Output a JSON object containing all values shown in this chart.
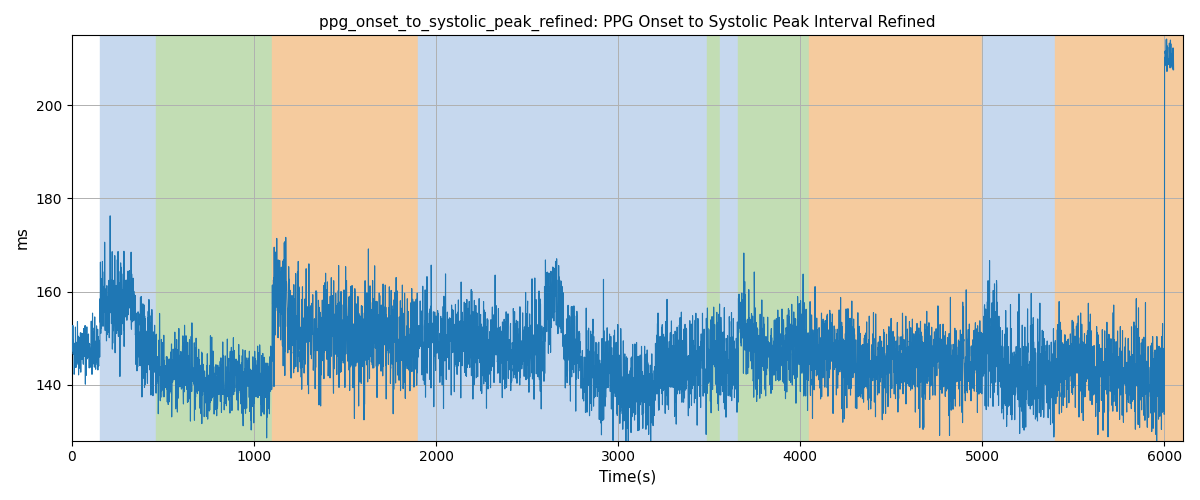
{
  "title": "ppg_onset_to_systolic_peak_refined: PPG Onset to Systolic Peak Interval Refined",
  "xlabel": "Time(s)",
  "ylabel": "ms",
  "xlim": [
    0,
    6100
  ],
  "ylim": [
    128,
    215
  ],
  "yticks": [
    140,
    160,
    180,
    200
  ],
  "xticks": [
    0,
    1000,
    2000,
    3000,
    4000,
    5000,
    6000
  ],
  "line_color": "#1f77b4",
  "line_width": 0.8,
  "grid_color": "#b0b0b0",
  "bands": [
    {
      "xmin": 0,
      "xmax": 155,
      "color": "#ffffff"
    },
    {
      "xmin": 155,
      "xmax": 460,
      "color": "#c6d8ee"
    },
    {
      "xmin": 460,
      "xmax": 1100,
      "color": "#c2ddb4"
    },
    {
      "xmin": 1100,
      "xmax": 1900,
      "color": "#f5cb9e"
    },
    {
      "xmin": 1900,
      "xmax": 3490,
      "color": "#c6d8ee"
    },
    {
      "xmin": 3490,
      "xmax": 3560,
      "color": "#c2ddb4"
    },
    {
      "xmin": 3560,
      "xmax": 3660,
      "color": "#c6d8ee"
    },
    {
      "xmin": 3660,
      "xmax": 4050,
      "color": "#c2ddb4"
    },
    {
      "xmin": 4050,
      "xmax": 5000,
      "color": "#f5cb9e"
    },
    {
      "xmin": 5000,
      "xmax": 5400,
      "color": "#c6d8ee"
    },
    {
      "xmin": 5400,
      "xmax": 6100,
      "color": "#f5cb9e"
    }
  ],
  "figsize": [
    12.0,
    5.0
  ],
  "dpi": 100
}
